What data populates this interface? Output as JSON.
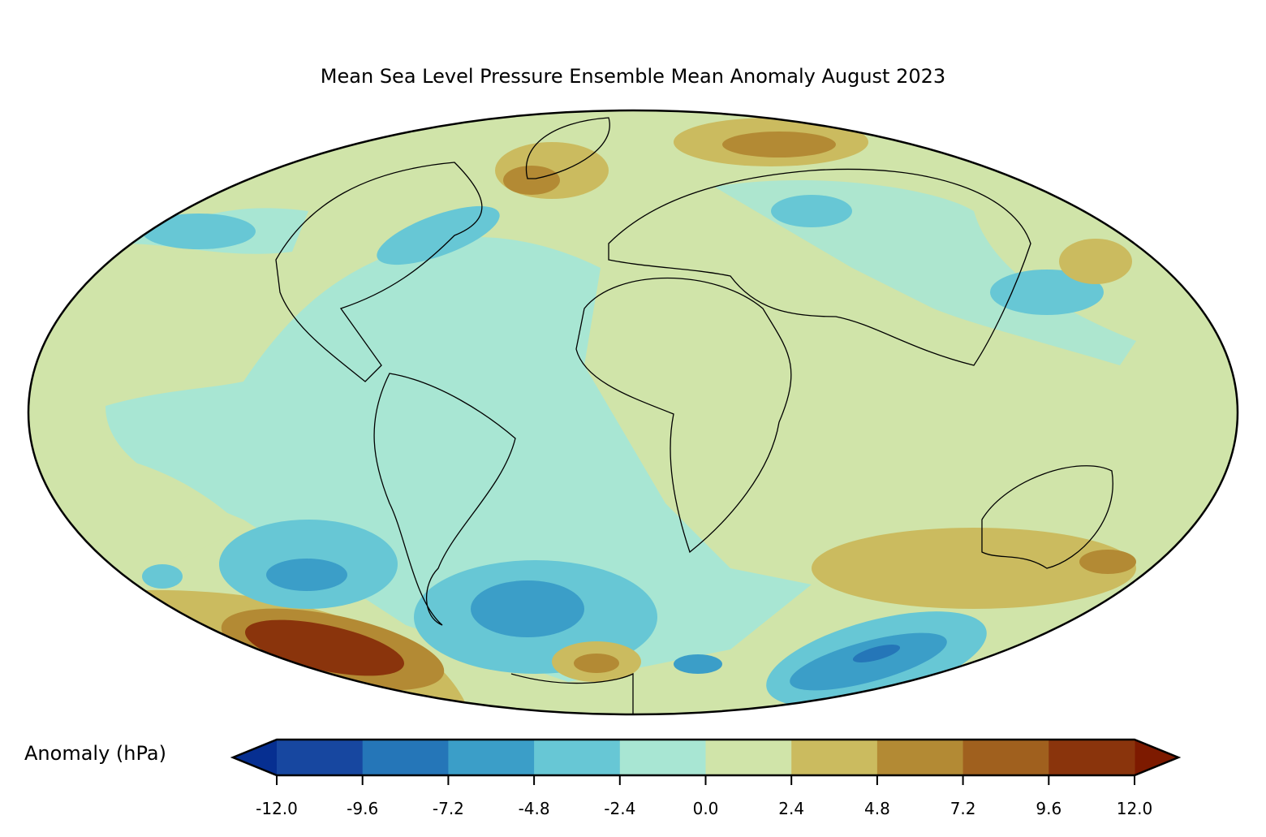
{
  "title": "Mean Sea Level Pressure Ensemble Mean Anomaly August 2023",
  "map": {
    "projection": "Mollweide",
    "variable": "Mean sea level pressure anomaly",
    "features": [
      "coastlines",
      "country borders"
    ]
  },
  "colorbar": {
    "label": "Anomaly (hPa)",
    "ticks": [
      "-12.0",
      "-9.6",
      "-7.2",
      "-4.8",
      "-2.4",
      "0.0",
      "2.4",
      "4.8",
      "7.2",
      "9.6",
      "12.0"
    ],
    "under_color": "#062f91",
    "over_color": "#7d1a00",
    "colors": [
      "#1747a0",
      "#2576b8",
      "#3b9ec8",
      "#67c7d5",
      "#a8e6d3",
      "#d0e4a9",
      "#cbbb5f",
      "#b38a34",
      "#a0601e",
      "#8a340c"
    ],
    "extend": "both"
  }
}
